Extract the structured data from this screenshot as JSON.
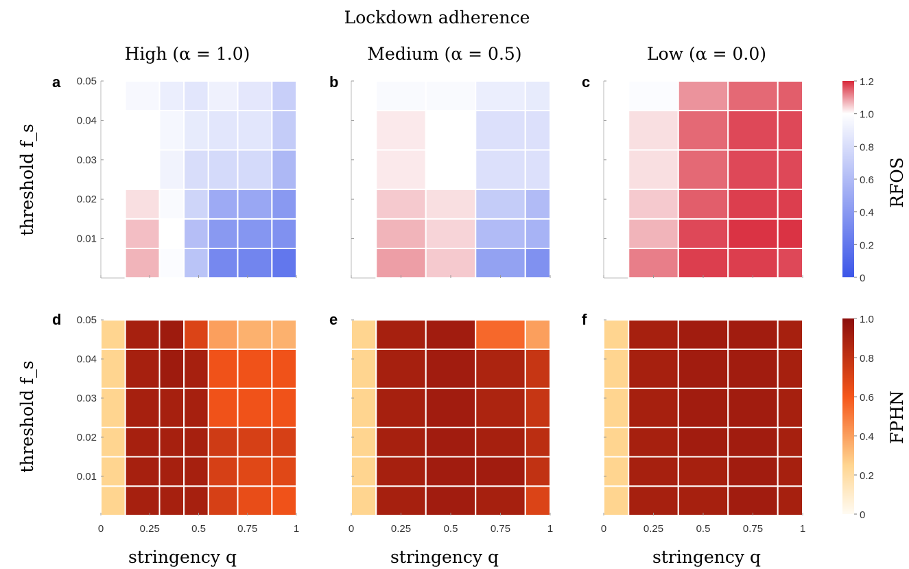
{
  "figure": {
    "title": "Lockdown adherence",
    "row_labels": [
      "threshold f_s",
      "threshold f_s"
    ],
    "x_label": "stringency q"
  },
  "columns": [
    {
      "label": "High (α = 1.0)"
    },
    {
      "label": "Medium (α = 0.5)"
    },
    {
      "label": "Low (α = 0.0)"
    }
  ],
  "colorbars": {
    "rfos": {
      "label": "RFOS",
      "ticks": [
        "1.2",
        "1.0",
        "0.8",
        "0.6",
        "0.4",
        "0.2",
        "0"
      ],
      "range": [
        0,
        1.2
      ],
      "colors": {
        "low": "#3b55e8",
        "mid": "#ffffff",
        "high": "#d8283a"
      }
    },
    "fphn": {
      "label": "FPHN",
      "ticks": [
        "1.0",
        "0.8",
        "0.6",
        "0.4",
        "0.2",
        "0"
      ],
      "range": [
        0,
        1.0
      ],
      "colors": {
        "c0": "#fffbf2",
        "c1": "#ffd590",
        "c2": "#f5561a",
        "c3": "#8c0e0c"
      }
    }
  },
  "axes": {
    "y_ticks": [
      "0.05",
      "0.04",
      "0.03",
      "0.02",
      "0.01"
    ],
    "x_ticks": [
      "0",
      "0.25",
      "0.5",
      "0.75",
      "1"
    ]
  },
  "chart_data": [
    {
      "panel": "a",
      "type": "heatmap",
      "metric": "RFOS",
      "x_edges": [
        0,
        0.125,
        0.3,
        0.425,
        0.55,
        0.7,
        0.875,
        1
      ],
      "y_edges": [
        0,
        0.0075,
        0.015,
        0.0225,
        0.0325,
        0.0425,
        0.05
      ],
      "z": [
        [
          null,
          1.07,
          0.98,
          0.65,
          0.3,
          0.28,
          0.2
        ],
        [
          null,
          1.06,
          1.0,
          0.62,
          0.4,
          0.38,
          0.35
        ],
        [
          null,
          1.03,
          0.97,
          0.75,
          0.5,
          0.48,
          0.4
        ],
        [
          null,
          1.0,
          0.93,
          0.8,
          0.78,
          0.78,
          0.58
        ],
        [
          null,
          null,
          0.95,
          0.88,
          0.85,
          0.85,
          0.7
        ],
        [
          null,
          0.96,
          0.9,
          0.85,
          0.92,
          0.86,
          0.72
        ]
      ]
    },
    {
      "panel": "b",
      "type": "heatmap",
      "metric": "RFOS",
      "x_edges": [
        0,
        0.125,
        0.375,
        0.625,
        0.875,
        1
      ],
      "y_edges": [
        0,
        0.0075,
        0.015,
        0.0225,
        0.0325,
        0.0425,
        0.05
      ],
      "z": [
        [
          null,
          1.09,
          1.05,
          0.45,
          0.35
        ],
        [
          null,
          1.07,
          1.04,
          0.6,
          0.55
        ],
        [
          null,
          1.05,
          1.03,
          0.7,
          0.6
        ],
        [
          null,
          1.02,
          1.0,
          0.82,
          0.82
        ],
        [
          null,
          1.02,
          1.0,
          0.82,
          0.82
        ],
        [
          null,
          0.97,
          0.97,
          0.9,
          0.88
        ]
      ]
    },
    {
      "panel": "c",
      "type": "heatmap",
      "metric": "RFOS",
      "x_edges": [
        0,
        0.125,
        0.375,
        0.625,
        0.875,
        1
      ],
      "y_edges": [
        0,
        0.0075,
        0.015,
        0.0225,
        0.0325,
        0.0425,
        0.05
      ],
      "z": [
        [
          null,
          1.12,
          1.18,
          1.18,
          1.17
        ],
        [
          null,
          1.07,
          1.17,
          1.19,
          1.19
        ],
        [
          null,
          1.05,
          1.15,
          1.18,
          1.18
        ],
        [
          null,
          1.03,
          1.14,
          1.17,
          1.17
        ],
        [
          null,
          1.03,
          1.14,
          1.17,
          1.17
        ],
        [
          null,
          0.98,
          1.1,
          1.14,
          1.15
        ]
      ]
    },
    {
      "panel": "d",
      "type": "heatmap",
      "metric": "FPHN",
      "x_edges": [
        0,
        0.125,
        0.3,
        0.425,
        0.55,
        0.7,
        0.875,
        1
      ],
      "y_edges": [
        0,
        0.0075,
        0.015,
        0.0225,
        0.0325,
        0.0425,
        0.05
      ],
      "z": [
        [
          0.25,
          0.9,
          0.9,
          0.9,
          0.72,
          0.65,
          0.62
        ],
        [
          0.25,
          0.9,
          0.9,
          0.9,
          0.72,
          0.68,
          0.68
        ],
        [
          0.25,
          0.9,
          0.9,
          0.9,
          0.75,
          0.72,
          0.72
        ],
        [
          0.25,
          0.9,
          0.9,
          0.9,
          0.62,
          0.62,
          0.62
        ],
        [
          0.25,
          0.9,
          0.93,
          0.9,
          0.62,
          0.62,
          0.62
        ],
        [
          0.25,
          0.9,
          0.93,
          0.7,
          0.4,
          0.35,
          0.35
        ]
      ]
    },
    {
      "panel": "e",
      "type": "heatmap",
      "metric": "FPHN",
      "x_edges": [
        0,
        0.125,
        0.375,
        0.625,
        0.875,
        1
      ],
      "y_edges": [
        0,
        0.0075,
        0.015,
        0.0225,
        0.0325,
        0.0425,
        0.05
      ],
      "z": [
        [
          0.25,
          0.9,
          0.92,
          0.9,
          0.7
        ],
        [
          0.25,
          0.9,
          0.92,
          0.92,
          0.8
        ],
        [
          0.25,
          0.9,
          0.92,
          0.9,
          0.82
        ],
        [
          0.25,
          0.9,
          0.92,
          0.88,
          0.78
        ],
        [
          0.25,
          0.9,
          0.92,
          0.88,
          0.78
        ],
        [
          0.25,
          0.9,
          0.92,
          0.55,
          0.4
        ]
      ]
    },
    {
      "panel": "f",
      "type": "heatmap",
      "metric": "FPHN",
      "x_edges": [
        0,
        0.125,
        0.375,
        0.625,
        0.875,
        1
      ],
      "y_edges": [
        0,
        0.0075,
        0.015,
        0.0225,
        0.0325,
        0.0425,
        0.05
      ],
      "z": [
        [
          0.25,
          0.9,
          0.9,
          0.92,
          0.9
        ],
        [
          0.25,
          0.9,
          0.9,
          0.92,
          0.9
        ],
        [
          0.25,
          0.9,
          0.92,
          0.92,
          0.9
        ],
        [
          0.25,
          0.9,
          0.92,
          0.92,
          0.9
        ],
        [
          0.25,
          0.9,
          0.92,
          0.92,
          0.9
        ],
        [
          0.25,
          0.9,
          0.92,
          0.92,
          0.9
        ]
      ]
    }
  ]
}
